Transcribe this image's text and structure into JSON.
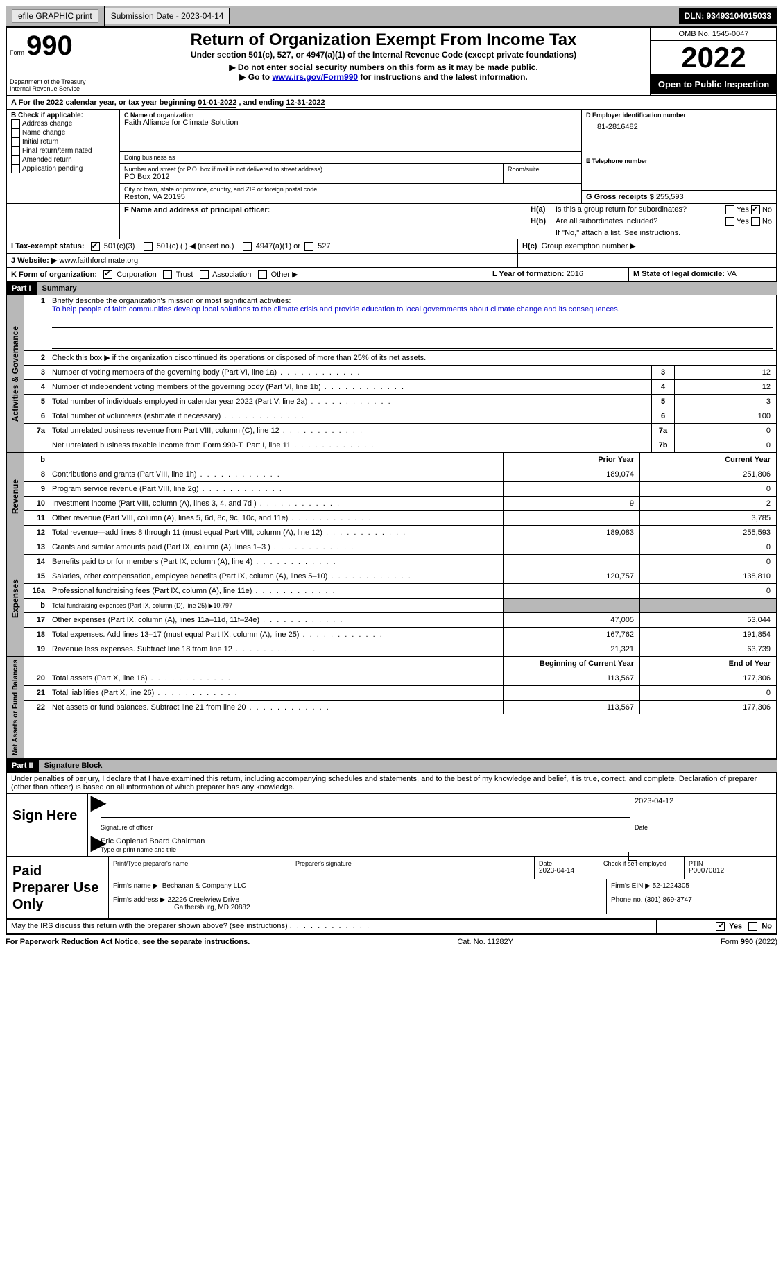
{
  "topbar": {
    "efile": "efile GRAPHIC print",
    "submission": "Submission Date - 2023-04-14",
    "dln": "DLN: 93493104015033"
  },
  "header": {
    "form_label": "Form",
    "form_num": "990",
    "dept": "Department of the Treasury",
    "irs": "Internal Revenue Service",
    "title": "Return of Organization Exempt From Income Tax",
    "subtitle": "Under section 501(c), 527, or 4947(a)(1) of the Internal Revenue Code (except private foundations)",
    "note1": "▶ Do not enter social security numbers on this form as it may be made public.",
    "note2_pre": "▶ Go to ",
    "note2_link": "www.irs.gov/Form990",
    "note2_post": " for instructions and the latest information.",
    "omb": "OMB No. 1545-0047",
    "year": "2022",
    "inspection": "Open to Public Inspection"
  },
  "period": {
    "label_a": "A For the 2022 calendar year, or tax year beginning ",
    "begin": "01-01-2022",
    "mid": " , and ending ",
    "end": "12-31-2022"
  },
  "box_b": {
    "title": "B Check if applicable:",
    "opts": [
      "Address change",
      "Name change",
      "Initial return",
      "Final return/terminated",
      "Amended return",
      "Application pending"
    ]
  },
  "box_c": {
    "name_label": "C Name of organization",
    "name": "Faith Alliance for Climate Solution",
    "dba": "Doing business as",
    "addr_label": "Number and street (or P.O. box if mail is not delivered to street address)",
    "room": "Room/suite",
    "addr": "PO Box 2012",
    "city_label": "City or town, state or province, country, and ZIP or foreign postal code",
    "city": "Reston, VA  20195"
  },
  "box_d": {
    "label": "D Employer identification number",
    "value": "81-2816482"
  },
  "box_e": {
    "label": "E Telephone number"
  },
  "box_g": {
    "label": "G Gross receipts $ ",
    "value": "255,593"
  },
  "box_f": {
    "label": "F Name and address of principal officer:"
  },
  "box_h": {
    "a": "Is this a group return for subordinates?",
    "b": "Are all subordinates included?",
    "note": "If \"No,\" attach a list. See instructions.",
    "c": "Group exemption number ▶",
    "yes": "Yes",
    "no": "No"
  },
  "box_i": {
    "label": "I   Tax-exempt status:",
    "o1": "501(c)(3)",
    "o2": "501(c) (  ) ◀ (insert no.)",
    "o3": "4947(a)(1) or",
    "o4": "527"
  },
  "box_j": {
    "label": "J   Website: ▶  ",
    "value": "www.faithforclimate.org"
  },
  "box_k": {
    "label": "K Form of organization:",
    "o1": "Corporation",
    "o2": "Trust",
    "o3": "Association",
    "o4": "Other ▶"
  },
  "box_l": {
    "label": "L Year of formation: ",
    "value": "2016"
  },
  "box_m": {
    "label": "M State of legal domicile: ",
    "value": "VA"
  },
  "part1": {
    "num": "Part I",
    "title": "Summary"
  },
  "mission": {
    "label": "Briefly describe the organization's mission or most significant activities:",
    "text": "To help people of faith communities develop local solutions to the climate crisis and provide education to local governments about climate change and its consequences."
  },
  "line2": "Check this box ▶      if the organization discontinued its operations or disposed of more than 25% of its net assets.",
  "lines_gov": [
    {
      "n": "3",
      "d": "Number of voting members of the governing body (Part VI, line 1a)",
      "b": "3",
      "v": "12"
    },
    {
      "n": "4",
      "d": "Number of independent voting members of the governing body (Part VI, line 1b)",
      "b": "4",
      "v": "12"
    },
    {
      "n": "5",
      "d": "Total number of individuals employed in calendar year 2022 (Part V, line 2a)",
      "b": "5",
      "v": "3"
    },
    {
      "n": "6",
      "d": "Total number of volunteers (estimate if necessary)",
      "b": "6",
      "v": "100"
    },
    {
      "n": "7a",
      "d": "Total unrelated business revenue from Part VIII, column (C), line 12",
      "b": "7a",
      "v": "0"
    },
    {
      "n": "",
      "d": "Net unrelated business taxable income from Form 990-T, Part I, line 11",
      "b": "7b",
      "v": "0"
    }
  ],
  "col_headers": {
    "b": "b",
    "prior": "Prior Year",
    "current": "Current Year"
  },
  "revenue": [
    {
      "n": "8",
      "d": "Contributions and grants (Part VIII, line 1h)",
      "p": "189,074",
      "c": "251,806"
    },
    {
      "n": "9",
      "d": "Program service revenue (Part VIII, line 2g)",
      "p": "",
      "c": "0"
    },
    {
      "n": "10",
      "d": "Investment income (Part VIII, column (A), lines 3, 4, and 7d )",
      "p": "9",
      "c": "2"
    },
    {
      "n": "11",
      "d": "Other revenue (Part VIII, column (A), lines 5, 6d, 8c, 9c, 10c, and 11e)",
      "p": "",
      "c": "3,785"
    },
    {
      "n": "12",
      "d": "Total revenue—add lines 8 through 11 (must equal Part VIII, column (A), line 12)",
      "p": "189,083",
      "c": "255,593"
    }
  ],
  "expenses": [
    {
      "n": "13",
      "d": "Grants and similar amounts paid (Part IX, column (A), lines 1–3 )",
      "p": "",
      "c": "0"
    },
    {
      "n": "14",
      "d": "Benefits paid to or for members (Part IX, column (A), line 4)",
      "p": "",
      "c": "0"
    },
    {
      "n": "15",
      "d": "Salaries, other compensation, employee benefits (Part IX, column (A), lines 5–10)",
      "p": "120,757",
      "c": "138,810"
    },
    {
      "n": "16a",
      "d": "Professional fundraising fees (Part IX, column (A), line 11e)",
      "p": "",
      "c": "0"
    },
    {
      "n": "b",
      "d": "Total fundraising expenses (Part IX, column (D), line 25) ▶10,797",
      "p": "shaded",
      "c": "shaded"
    },
    {
      "n": "17",
      "d": "Other expenses (Part IX, column (A), lines 11a–11d, 11f–24e)",
      "p": "47,005",
      "c": "53,044"
    },
    {
      "n": "18",
      "d": "Total expenses. Add lines 13–17 (must equal Part IX, column (A), line 25)",
      "p": "167,762",
      "c": "191,854"
    },
    {
      "n": "19",
      "d": "Revenue less expenses. Subtract line 18 from line 12",
      "p": "21,321",
      "c": "63,739"
    }
  ],
  "net_headers": {
    "begin": "Beginning of Current Year",
    "end": "End of Year"
  },
  "netassets": [
    {
      "n": "20",
      "d": "Total assets (Part X, line 16)",
      "p": "113,567",
      "c": "177,306"
    },
    {
      "n": "21",
      "d": "Total liabilities (Part X, line 26)",
      "p": "",
      "c": "0"
    },
    {
      "n": "22",
      "d": "Net assets or fund balances. Subtract line 21 from line 20",
      "p": "113,567",
      "c": "177,306"
    }
  ],
  "sections": {
    "gov": "Activities & Governance",
    "rev": "Revenue",
    "exp": "Expenses",
    "net": "Net Assets or Fund Balances"
  },
  "part2": {
    "num": "Part II",
    "title": "Signature Block"
  },
  "penalties": "Under penalties of perjury, I declare that I have examined this return, including accompanying schedules and statements, and to the best of my knowledge and belief, it is true, correct, and complete. Declaration of preparer (other than officer) is based on all information of which preparer has any knowledge.",
  "sign": {
    "here": "Sign Here",
    "sig_label": "Signature of officer",
    "date": "2023-04-12",
    "date_label": "Date",
    "name": "Eric Goplerud  Board Chairman",
    "name_label": "Type or print name and title"
  },
  "prep": {
    "label": "Paid Preparer Use Only",
    "h1": "Print/Type preparer's name",
    "h2": "Preparer's signature",
    "h3": "Date",
    "date": "2023-04-14",
    "h4": "Check       if self-employed",
    "h5": "PTIN",
    "ptin": "P00070812",
    "firm_name_l": "Firm's name      ▶",
    "firm_name": "Bechanan & Company LLC",
    "firm_ein_l": "Firm's EIN ▶",
    "firm_ein": "52-1224305",
    "firm_addr_l": "Firm's address ▶",
    "firm_addr1": "22226 Creekview Drive",
    "firm_addr2": "Gaithersburg, MD  20882",
    "phone_l": "Phone no. ",
    "phone": "(301) 869-3747"
  },
  "discuss": "May the IRS discuss this return with the preparer shown above? (see instructions)",
  "footer": {
    "left": "For Paperwork Reduction Act Notice, see the separate instructions.",
    "mid": "Cat. No. 11282Y",
    "right": "Form 990 (2022)"
  }
}
